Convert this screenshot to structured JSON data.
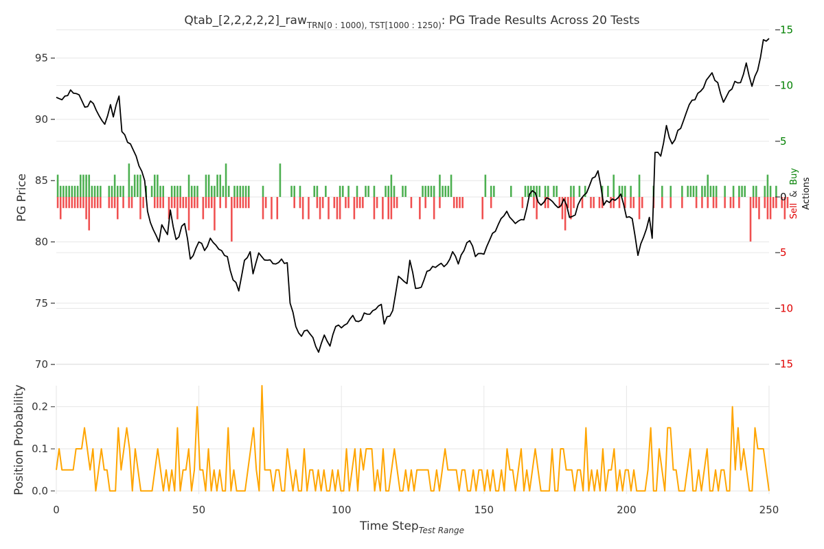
{
  "chart_data": [
    {
      "type": "line",
      "title": {
        "prefix": "Qtab_[2,2,2,2,2]_raw",
        "subscript": "TRN[0 : 1000), TST[1000 : 1250)",
        "suffix": ": PG Trade Results Across 20 Tests"
      },
      "ylabel": "PG Price",
      "y2label": {
        "sell": "Sell",
        "amp": "&",
        "buy": "Buy",
        "actions": "Actions"
      },
      "xlim": [
        0,
        250
      ],
      "ylim": [
        69.5,
        97.5
      ],
      "y2lim": [
        -15,
        15
      ],
      "yticks": [
        70,
        75,
        80,
        85,
        90,
        95
      ],
      "y2ticks": [
        15,
        10,
        5,
        0,
        5,
        10,
        15
      ],
      "price_keypoints": [
        [
          0,
          91.8
        ],
        [
          2,
          91.6
        ],
        [
          5,
          92.4
        ],
        [
          8,
          92.0
        ],
        [
          10,
          91.0
        ],
        [
          12,
          91.5
        ],
        [
          15,
          90.3
        ],
        [
          17,
          89.6
        ],
        [
          19,
          91.2
        ],
        [
          20,
          90.2
        ],
        [
          22,
          91.9
        ],
        [
          23,
          89.0
        ],
        [
          26,
          88.0
        ],
        [
          28,
          87.0
        ],
        [
          31,
          85.0
        ],
        [
          32,
          82.5
        ],
        [
          34,
          81.0
        ],
        [
          36,
          80.0
        ],
        [
          37,
          81.4
        ],
        [
          39,
          80.6
        ],
        [
          40,
          82.6
        ],
        [
          42,
          80.2
        ],
        [
          45,
          81.5
        ],
        [
          47,
          78.6
        ],
        [
          50,
          80.0
        ],
        [
          52,
          79.3
        ],
        [
          54,
          80.3
        ],
        [
          57,
          79.4
        ],
        [
          60,
          78.8
        ],
        [
          62,
          76.9
        ],
        [
          64,
          76.0
        ],
        [
          66,
          78.5
        ],
        [
          68,
          79.2
        ],
        [
          69,
          77.4
        ],
        [
          71,
          79.1
        ],
        [
          74,
          78.5
        ],
        [
          77,
          78.2
        ],
        [
          79,
          78.6
        ],
        [
          81,
          78.3
        ],
        [
          82,
          75.0
        ],
        [
          84,
          73.1
        ],
        [
          86,
          72.3
        ],
        [
          88,
          72.8
        ],
        [
          90,
          72.2
        ],
        [
          92,
          71.0
        ],
        [
          94,
          72.4
        ],
        [
          96,
          71.5
        ],
        [
          98,
          73.1
        ],
        [
          101,
          73.2
        ],
        [
          104,
          74.0
        ],
        [
          106,
          73.5
        ],
        [
          108,
          74.2
        ],
        [
          110,
          74.1
        ],
        [
          112,
          74.5
        ],
        [
          114,
          74.9
        ],
        [
          115,
          73.3
        ],
        [
          118,
          74.4
        ],
        [
          120,
          77.2
        ],
        [
          123,
          76.6
        ],
        [
          124,
          78.5
        ],
        [
          126,
          76.2
        ],
        [
          128,
          76.3
        ],
        [
          130,
          77.6
        ],
        [
          132,
          78.0
        ],
        [
          134,
          78.1
        ],
        [
          137,
          78.2
        ],
        [
          139,
          79.2
        ],
        [
          141,
          78.2
        ],
        [
          143,
          79.3
        ],
        [
          145,
          80.1
        ],
        [
          147,
          78.8
        ],
        [
          150,
          79.0
        ],
        [
          153,
          80.7
        ],
        [
          156,
          81.9
        ],
        [
          158,
          82.5
        ],
        [
          161,
          81.5
        ],
        [
          164,
          81.8
        ],
        [
          166,
          83.9
        ],
        [
          168,
          84.0
        ],
        [
          170,
          83.0
        ],
        [
          172,
          83.6
        ],
        [
          174,
          83.3
        ],
        [
          176,
          82.8
        ],
        [
          178,
          83.5
        ],
        [
          180,
          82.0
        ],
        [
          182,
          82.2
        ],
        [
          184,
          83.5
        ],
        [
          186,
          84.0
        ],
        [
          188,
          85.2
        ],
        [
          190,
          85.8
        ],
        [
          192,
          83.0
        ],
        [
          195,
          83.5
        ],
        [
          198,
          83.9
        ],
        [
          200,
          82.0
        ],
        [
          202,
          81.9
        ],
        [
          204,
          78.9
        ],
        [
          206,
          80.4
        ],
        [
          208,
          82.0
        ],
        [
          209,
          80.3
        ],
        [
          210,
          87.3
        ],
        [
          212,
          87.0
        ],
        [
          214,
          89.5
        ],
        [
          216,
          88.0
        ],
        [
          218,
          89.1
        ],
        [
          220,
          89.9
        ],
        [
          222,
          91.2
        ],
        [
          224,
          91.6
        ],
        [
          226,
          92.3
        ],
        [
          228,
          93.2
        ],
        [
          230,
          93.8
        ],
        [
          232,
          93.0
        ],
        [
          234,
          91.4
        ],
        [
          236,
          92.3
        ],
        [
          238,
          93.1
        ],
        [
          240,
          93.0
        ],
        [
          242,
          94.6
        ],
        [
          244,
          92.7
        ],
        [
          246,
          94.0
        ],
        [
          248,
          96.5
        ],
        [
          250,
          96.6
        ]
      ],
      "buy_actions": [
        2,
        1,
        1,
        1,
        1,
        1,
        1,
        1,
        2,
        2,
        2,
        2,
        1,
        1,
        1,
        1,
        0,
        0,
        1,
        1,
        2,
        1,
        1,
        1,
        0,
        3,
        1,
        2,
        2,
        2,
        0,
        1,
        0,
        1,
        2,
        2,
        1,
        1,
        0,
        0,
        1,
        1,
        1,
        1,
        0,
        0,
        2,
        1,
        1,
        1,
        0,
        0,
        2,
        2,
        1,
        1,
        2,
        2,
        1,
        3,
        1,
        0,
        1,
        1,
        1,
        1,
        1,
        1,
        0,
        0,
        0,
        0,
        1,
        0,
        0,
        0,
        0,
        0,
        3,
        0,
        0,
        0,
        1,
        1,
        0,
        1,
        0,
        0,
        0,
        0,
        1,
        1,
        0,
        0,
        1,
        0,
        0,
        0,
        0,
        1,
        1,
        0,
        1,
        0,
        0,
        1,
        0,
        0,
        1,
        1,
        0,
        1,
        0,
        0,
        0,
        1,
        1,
        2,
        1,
        0,
        0,
        1,
        1,
        0,
        0,
        0,
        0,
        0,
        1,
        1,
        1,
        1,
        1,
        0,
        2,
        1,
        1,
        1,
        2,
        0,
        0,
        0,
        0,
        0,
        0,
        0,
        0,
        0,
        0,
        0,
        2,
        0,
        1,
        1,
        0,
        0,
        0,
        0,
        0,
        1,
        0,
        0,
        0,
        0,
        1,
        1,
        1,
        1,
        1,
        1,
        0,
        1,
        1,
        0,
        1,
        1,
        0,
        0,
        0,
        0,
        1,
        1,
        0,
        1,
        0,
        1,
        0,
        0,
        0,
        0,
        0,
        1,
        0,
        1,
        0,
        2,
        0,
        1,
        1,
        1,
        0,
        1,
        0,
        0,
        2,
        0,
        0,
        0,
        0,
        1,
        0,
        0,
        1,
        0,
        0,
        1,
        0,
        0,
        0,
        1,
        0,
        1,
        1,
        1,
        1,
        0,
        1,
        1,
        2,
        1,
        1,
        1,
        0,
        0,
        1,
        0,
        0,
        1,
        0,
        1,
        1,
        1,
        0,
        0,
        1,
        1,
        0,
        0,
        1,
        2,
        1,
        0,
        1,
        0
      ],
      "sell_actions": [
        1,
        2,
        1,
        1,
        1,
        1,
        1,
        1,
        1,
        1,
        2,
        3,
        1,
        1,
        1,
        1,
        0,
        0,
        1,
        1,
        1,
        2,
        0,
        1,
        0,
        1,
        1,
        0,
        0,
        2,
        1,
        0,
        0,
        0,
        1,
        1,
        1,
        1,
        0,
        2,
        1,
        1,
        2,
        1,
        1,
        1,
        3,
        1,
        1,
        1,
        0,
        2,
        1,
        1,
        1,
        3,
        0,
        1,
        0,
        1,
        0,
        4,
        1,
        1,
        1,
        1,
        1,
        1,
        0,
        0,
        0,
        0,
        2,
        1,
        0,
        2,
        0,
        2,
        0,
        0,
        0,
        0,
        0,
        1,
        0,
        1,
        2,
        0,
        2,
        0,
        0,
        1,
        2,
        1,
        0,
        2,
        0,
        1,
        2,
        2,
        0,
        1,
        1,
        0,
        2,
        1,
        1,
        1,
        0,
        0,
        0,
        2,
        1,
        0,
        2,
        0,
        2,
        2,
        1,
        1,
        0,
        0,
        0,
        0,
        1,
        0,
        0,
        2,
        0,
        1,
        0,
        0,
        2,
        0,
        1,
        0,
        0,
        0,
        0,
        1,
        1,
        1,
        1,
        0,
        0,
        0,
        0,
        0,
        0,
        2,
        0,
        0,
        1,
        0,
        0,
        0,
        0,
        0,
        0,
        0,
        0,
        0,
        0,
        1,
        0,
        0,
        0,
        1,
        2,
        0,
        0,
        1,
        1,
        0,
        0,
        0,
        1,
        2,
        3,
        1,
        2,
        1,
        0,
        0,
        1,
        0,
        0,
        1,
        1,
        0,
        1,
        1,
        0,
        0,
        1,
        1,
        0,
        1,
        0,
        1,
        0,
        1,
        1,
        0,
        2,
        1,
        0,
        0,
        0,
        1,
        0,
        0,
        1,
        0,
        0,
        1,
        0,
        0,
        0,
        1,
        0,
        0,
        0,
        0,
        1,
        0,
        1,
        0,
        1,
        0,
        1,
        1,
        0,
        0,
        1,
        0,
        1,
        1,
        0,
        1,
        0,
        0,
        0,
        4,
        1,
        1,
        2,
        0,
        1,
        2,
        2,
        1,
        1,
        0,
        1,
        2,
        1,
        0,
        0,
        0
      ]
    },
    {
      "type": "line",
      "xlabel": {
        "main": "Time Step",
        "subscript": "Test Range"
      },
      "ylabel": "Position Probability",
      "xlim": [
        0,
        250
      ],
      "ylim": [
        -0.0075,
        0.25
      ],
      "xticks": [
        0,
        50,
        100,
        150,
        200,
        250
      ],
      "yticks": [
        0.0,
        0.1,
        0.2
      ],
      "probability": [
        0.05,
        0.1,
        0.05,
        0.05,
        0.05,
        0.05,
        0.05,
        0.1,
        0.1,
        0.1,
        0.15,
        0.1,
        0.05,
        0.1,
        0.0,
        0.05,
        0.1,
        0.05,
        0.05,
        0.0,
        0.0,
        0.0,
        0.15,
        0.05,
        0.1,
        0.15,
        0.1,
        0.0,
        0.1,
        0.05,
        0.0,
        0.0,
        0.0,
        0.0,
        0.0,
        0.05,
        0.1,
        0.05,
        0.0,
        0.05,
        0.0,
        0.05,
        0.0,
        0.15,
        0.0,
        0.05,
        0.05,
        0.1,
        0.0,
        0.05,
        0.2,
        0.05,
        0.05,
        0.0,
        0.1,
        0.0,
        0.05,
        0.0,
        0.05,
        0.0,
        0.0,
        0.15,
        0.0,
        0.05,
        0.0,
        0.0,
        0.0,
        0.0,
        0.05,
        0.1,
        0.15,
        0.05,
        0.0,
        0.25,
        0.05,
        0.05,
        0.05,
        0.0,
        0.05,
        0.05,
        0.0,
        0.0,
        0.1,
        0.05,
        0.0,
        0.05,
        0.0,
        0.0,
        0.1,
        0.0,
        0.05,
        0.05,
        0.0,
        0.05,
        0.0,
        0.05,
        0.0,
        0.0,
        0.05,
        0.0,
        0.05,
        0.0,
        0.0,
        0.1,
        0.0,
        0.05,
        0.1,
        0.0,
        0.1,
        0.05,
        0.1,
        0.1,
        0.1,
        0.0,
        0.05,
        0.0,
        0.1,
        0.0,
        0.0,
        0.05,
        0.1,
        0.05,
        0.0,
        0.0,
        0.05,
        0.0,
        0.05,
        0.0,
        0.05,
        0.05,
        0.05,
        0.05,
        0.05,
        0.0,
        0.0,
        0.05,
        0.0,
        0.05,
        0.1,
        0.05,
        0.05,
        0.05,
        0.05,
        0.0,
        0.05,
        0.05,
        0.0,
        0.0,
        0.05,
        0.0,
        0.05,
        0.05,
        0.0,
        0.05,
        0.0,
        0.05,
        0.0,
        0.0,
        0.05,
        0.0,
        0.1,
        0.05,
        0.05,
        0.0,
        0.05,
        0.1,
        0.0,
        0.05,
        0.0,
        0.05,
        0.1,
        0.05,
        0.0,
        0.0,
        0.0,
        0.0,
        0.1,
        0.0,
        0.0,
        0.1,
        0.1,
        0.05,
        0.05,
        0.05,
        0.0,
        0.05,
        0.05,
        0.0,
        0.15,
        0.0,
        0.05,
        0.0,
        0.05,
        0.0,
        0.1,
        0.0,
        0.05,
        0.05,
        0.1,
        0.0,
        0.05,
        0.0,
        0.05,
        0.05,
        0.0,
        0.05,
        0.0,
        0.0,
        0.0,
        0.0,
        0.05,
        0.15,
        0.0,
        0.0,
        0.1,
        0.05,
        0.0,
        0.15,
        0.15,
        0.05,
        0.05,
        0.0,
        0.0,
        0.0,
        0.05,
        0.1,
        0.0,
        0.0,
        0.05,
        0.0,
        0.05,
        0.1,
        0.0,
        0.0,
        0.05,
        0.0,
        0.05,
        0.05,
        0.0,
        0.0,
        0.2,
        0.05,
        0.15,
        0.05,
        0.1,
        0.05,
        0.0,
        0.0,
        0.15,
        0.1,
        0.1,
        0.1,
        0.05,
        0.0
      ]
    }
  ],
  "colors": {
    "price": "#000000",
    "buy": "#4caf50",
    "sell": "#f05050",
    "probability": "#ffa500",
    "buy_label": "#008000",
    "sell_label": "#e00000",
    "text": "#333333",
    "grid": "#e6e6e6"
  }
}
